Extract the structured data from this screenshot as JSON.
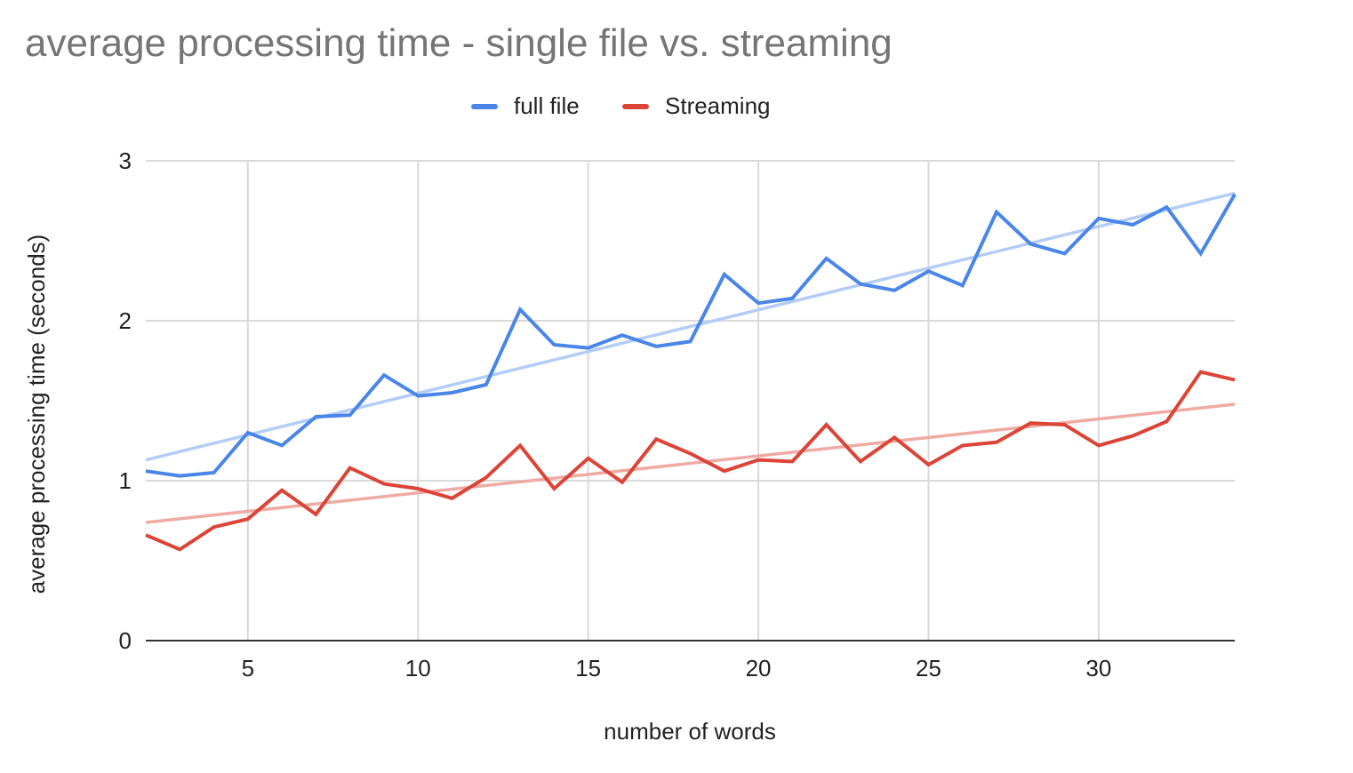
{
  "chart_data": {
    "type": "line",
    "title": "average processing time - single file vs. streaming",
    "xlabel": "number of words",
    "ylabel": "average processing time (seconds)",
    "xlim": [
      2,
      34
    ],
    "ylim": [
      0,
      3
    ],
    "x_ticks": [
      5,
      10,
      15,
      20,
      25,
      30
    ],
    "y_ticks": [
      0,
      1,
      2,
      3
    ],
    "grid": true,
    "legend_position": "top",
    "x": [
      2,
      3,
      4,
      5,
      6,
      7,
      8,
      9,
      10,
      11,
      12,
      13,
      14,
      15,
      16,
      17,
      18,
      19,
      20,
      21,
      22,
      23,
      24,
      25,
      26,
      27,
      28,
      29,
      30,
      31,
      32,
      33,
      34
    ],
    "series": [
      {
        "name": "full file",
        "color": "#4a86e8",
        "trend_color": "#b3cdf8",
        "values": [
          1.06,
          1.03,
          1.05,
          1.3,
          1.22,
          1.4,
          1.41,
          1.66,
          1.53,
          1.55,
          1.6,
          2.07,
          1.85,
          1.83,
          1.91,
          1.84,
          1.87,
          2.29,
          2.11,
          2.14,
          2.39,
          2.23,
          2.19,
          2.31,
          2.22,
          2.68,
          2.48,
          2.42,
          2.64,
          2.6,
          2.71,
          2.42,
          2.79
        ]
      },
      {
        "name": "Streaming",
        "color": "#db4437",
        "trend_color": "#f0aaa4",
        "values": [
          0.66,
          0.57,
          0.71,
          0.76,
          0.94,
          0.79,
          1.08,
          0.98,
          0.95,
          0.89,
          1.02,
          1.22,
          0.95,
          1.14,
          0.99,
          1.26,
          1.17,
          1.06,
          1.13,
          1.12,
          1.35,
          1.12,
          1.27,
          1.1,
          1.22,
          1.24,
          1.36,
          1.35,
          1.22,
          1.28,
          1.37,
          1.68,
          1.63
        ]
      }
    ]
  }
}
